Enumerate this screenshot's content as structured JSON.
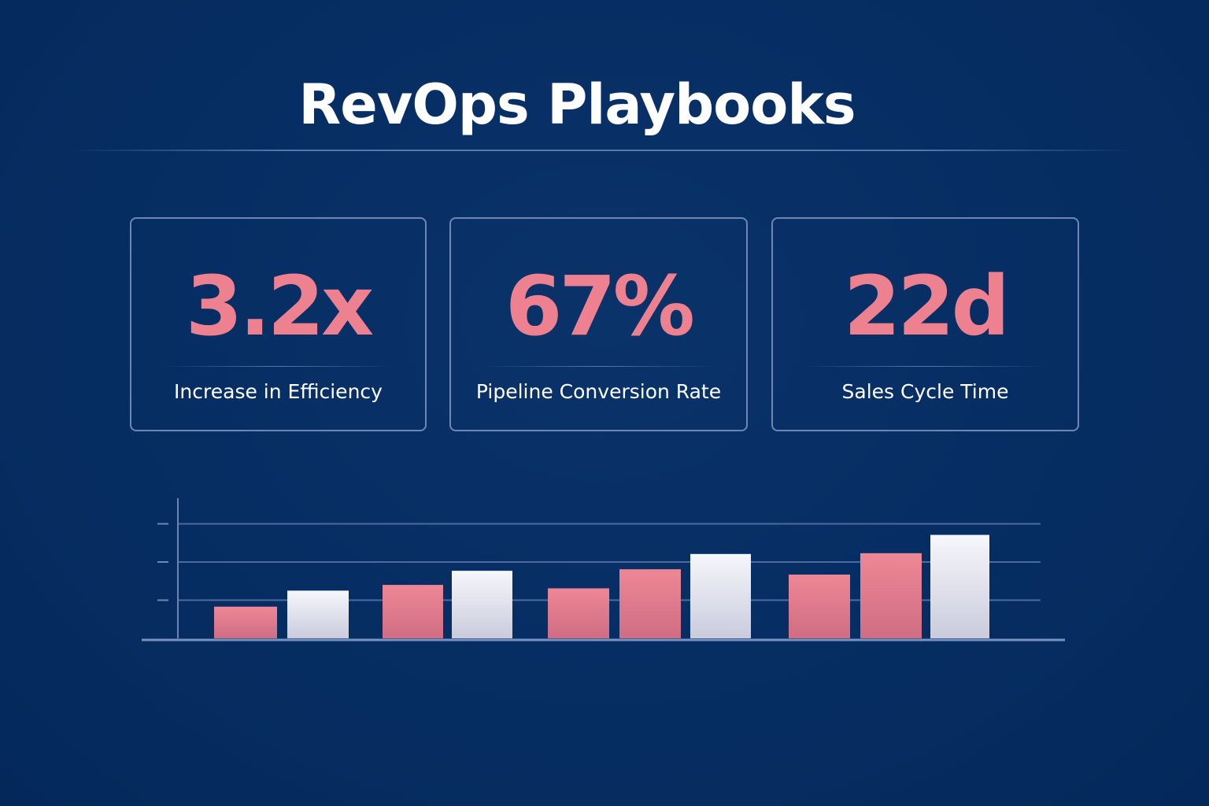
{
  "header": {
    "title": "RevOps Playbooks"
  },
  "kpis": [
    {
      "value": "3.2x",
      "label": "Increase in Efficiency"
    },
    {
      "value": "67%",
      "label": "Pipeline Conversion Rate"
    },
    {
      "value": "22d",
      "label": "Sales Cycle Time"
    }
  ],
  "chart_data": {
    "type": "bar",
    "title": "",
    "xlabel": "",
    "ylabel": "",
    "ylim": [
      0,
      3.3
    ],
    "yticks": [
      1,
      2,
      3
    ],
    "grid": true,
    "colors": {
      "pink": "#ea8493",
      "white": "#eceef5"
    },
    "groups": [
      {
        "bars": [
          {
            "color": "pink",
            "value": 0.83
          },
          {
            "color": "white",
            "value": 1.25
          }
        ]
      },
      {
        "bars": [
          {
            "color": "pink",
            "value": 1.4
          },
          {
            "color": "white",
            "value": 1.77
          }
        ]
      },
      {
        "bars": [
          {
            "color": "pink",
            "value": 1.31
          },
          {
            "color": "pink",
            "value": 1.81
          },
          {
            "color": "white",
            "value": 2.21
          }
        ]
      },
      {
        "bars": [
          {
            "color": "pink",
            "value": 1.67
          },
          {
            "color": "pink",
            "value": 2.23
          },
          {
            "color": "white",
            "value": 2.71
          }
        ]
      }
    ]
  }
}
